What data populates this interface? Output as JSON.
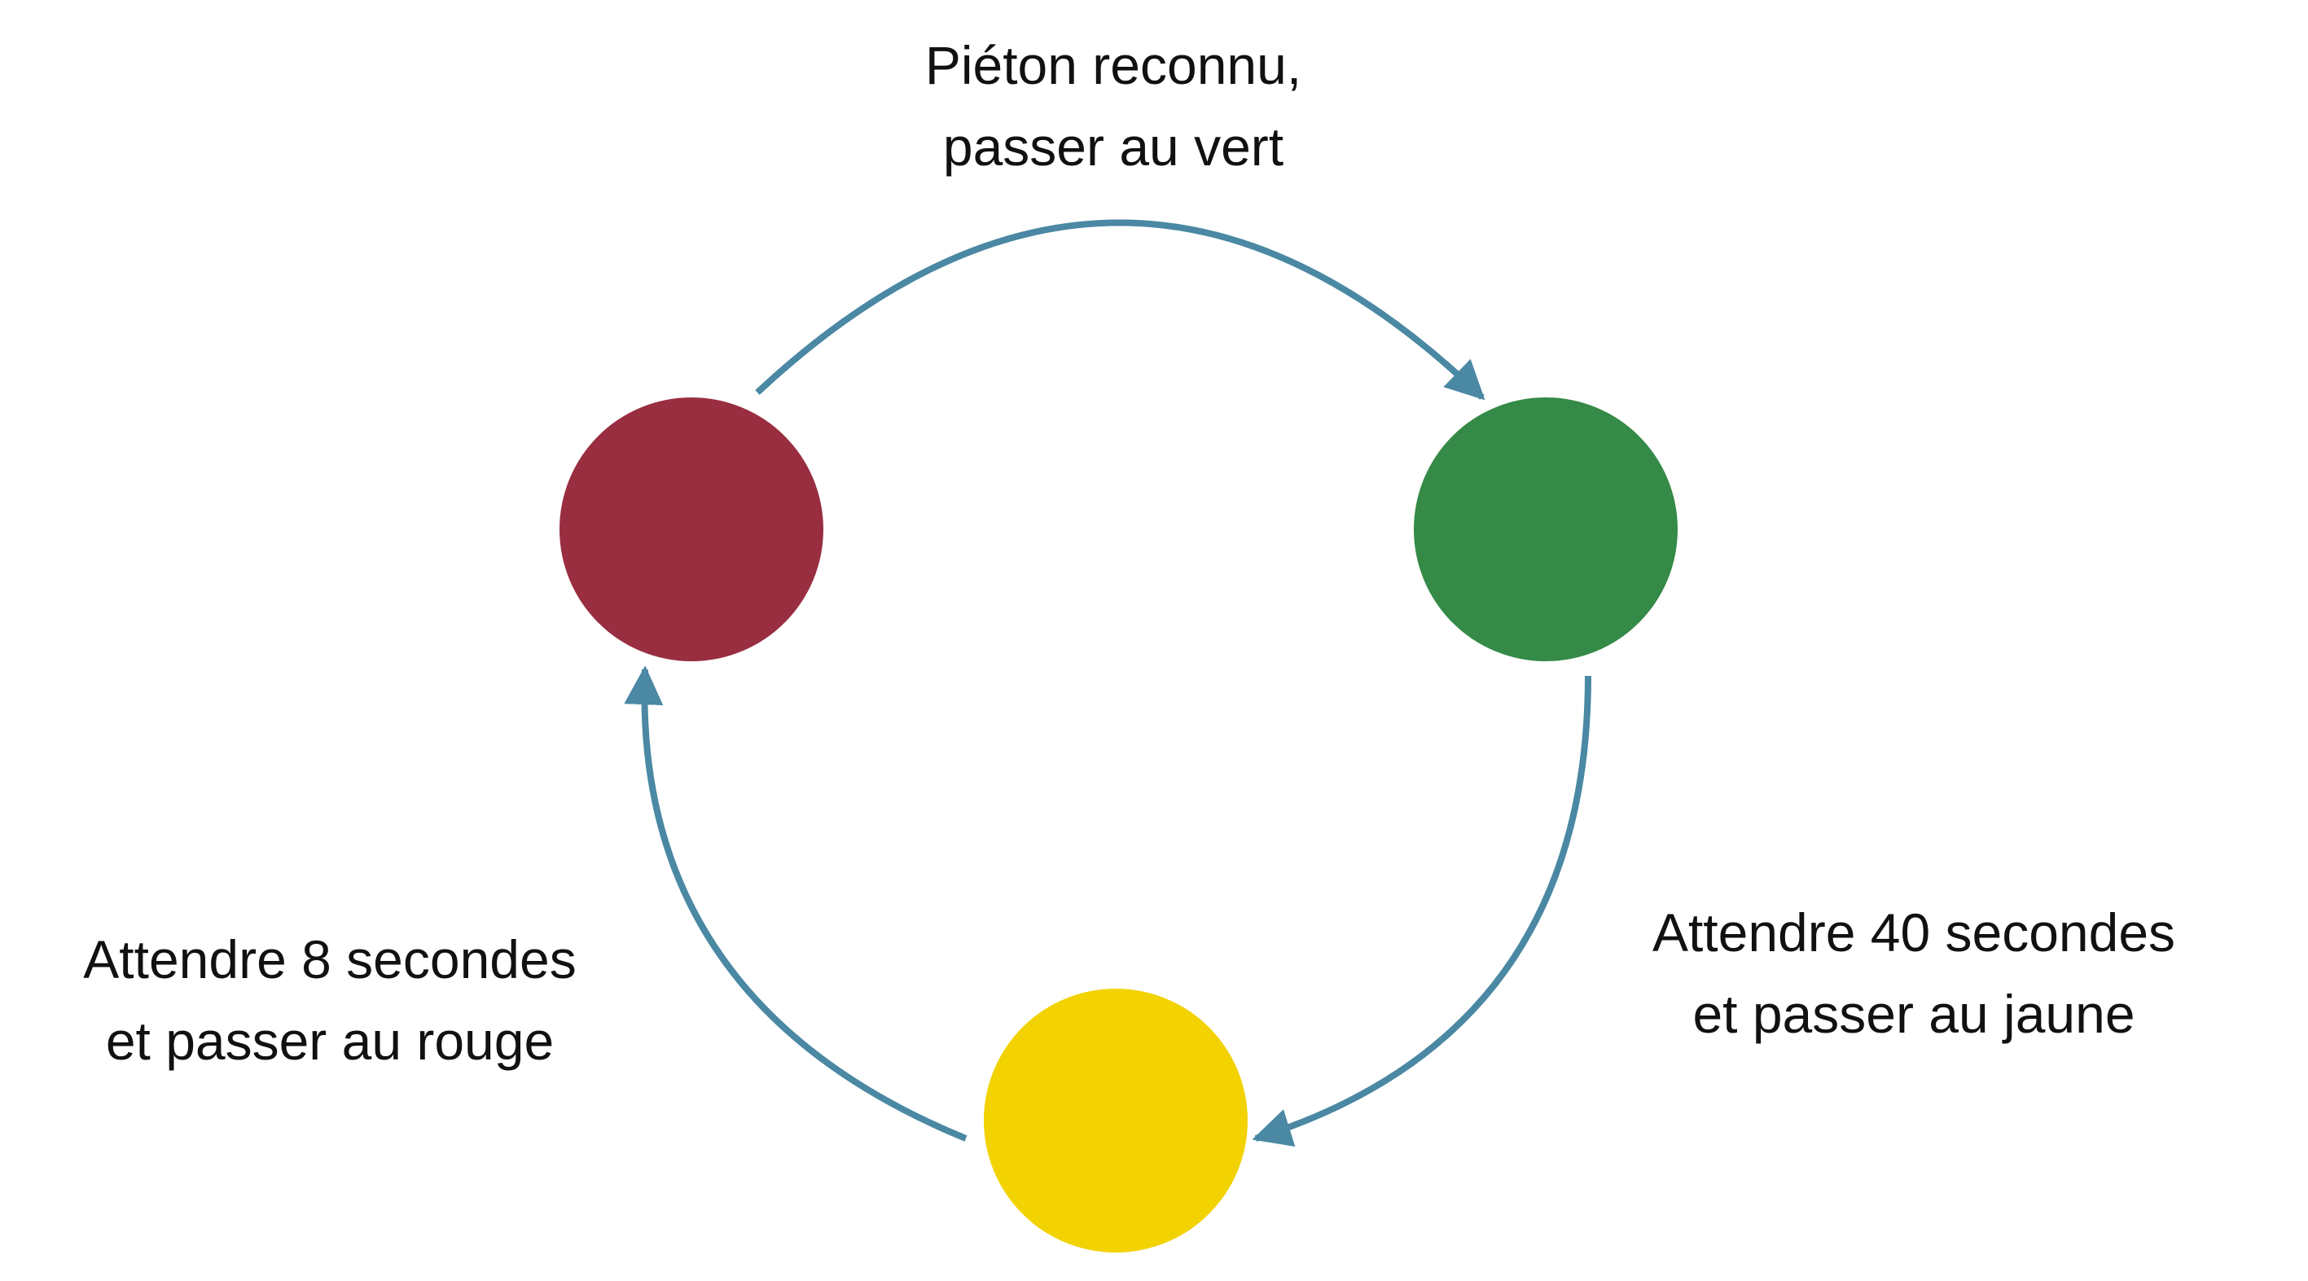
{
  "diagram": {
    "colors": {
      "red_state": "#982e40",
      "green_state": "#348a46",
      "yellow_state": "#f2d200",
      "arrow": "#4a88a3"
    },
    "transitions": {
      "red_to_green": {
        "line1": "Piéton reconnu,",
        "line2": "passer au vert"
      },
      "green_to_yellow": {
        "line1": "Attendre 40 secondes",
        "line2": "et passer au jaune"
      },
      "yellow_to_red": {
        "line1": "Attendre 8 secondes",
        "line2": "et passer au rouge"
      }
    }
  }
}
